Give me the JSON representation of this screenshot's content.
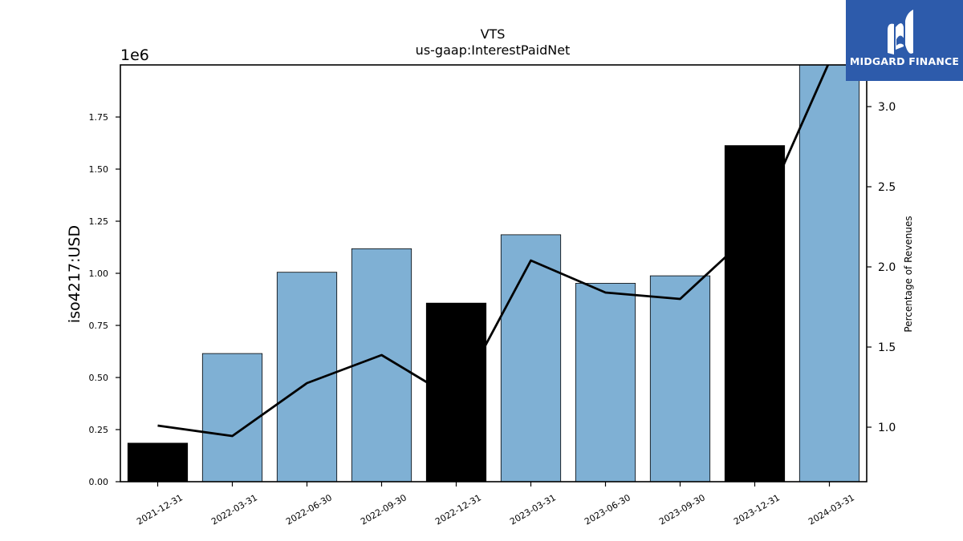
{
  "chart_data": {
    "type": "bar",
    "title": "VTS",
    "subtitle": "us-gaap:InterestPaidNet",
    "ylabel": "iso4217:USD",
    "y_offset_label": "1e6",
    "ylabel_right": "Percentage of Revenues",
    "categories": [
      "2021-12-31",
      "2022-03-31",
      "2022-06-30",
      "2022-09-30",
      "2022-12-31",
      "2023-03-31",
      "2023-06-30",
      "2023-09-30",
      "2023-12-31",
      "2024-03-31"
    ],
    "series": [
      {
        "values": [
          185000,
          615000,
          1005000,
          1118000,
          857000,
          1185000,
          952000,
          988000,
          1613000,
          2000000
        ],
        "colors": [
          "#000000",
          "#7fb0d4",
          "#7fb0d4",
          "#7fb0d4",
          "#000000",
          "#7fb0d4",
          "#7fb0d4",
          "#7fb0d4",
          "#000000",
          "#7fb0d4"
        ]
      },
      {
        "type": "line",
        "axis": "right",
        "values": [
          1.01,
          0.945,
          1.275,
          1.45,
          1.17,
          2.04,
          1.84,
          1.8,
          2.23,
          3.28
        ],
        "color": "#000000"
      }
    ],
    "ylim": [
      0,
      2000000
    ],
    "yticks": [
      0,
      250000,
      500000,
      750000,
      1000000,
      1250000,
      1500000,
      1750000
    ],
    "ytick_labels": [
      "0.00",
      "0.25",
      "0.50",
      "0.75",
      "1.00",
      "1.25",
      "1.50",
      "1.75"
    ],
    "ylim_right": [
      0.66,
      3.26
    ],
    "yticks_right": [
      1.0,
      1.5,
      2.0,
      2.5,
      3.0
    ],
    "ytick_labels_right": [
      "1.0",
      "1.5",
      "2.0",
      "2.5",
      "3.0"
    ],
    "grid": false,
    "legend": "none"
  },
  "logo": {
    "text": "MIDGARD FINANCE"
  }
}
